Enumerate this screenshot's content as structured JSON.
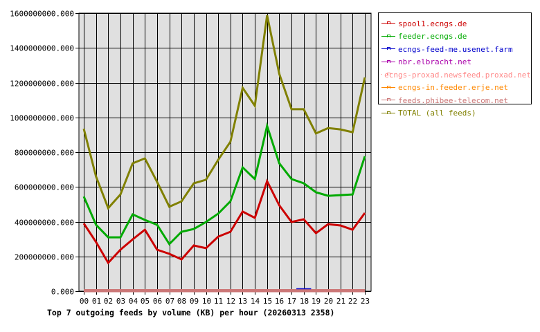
{
  "chart_data": {
    "type": "line",
    "title": "Top 7 outgoing feeds by volume (KB) per hour (20260313 2358)",
    "xlabel": "",
    "ylabel": "",
    "ylim": [
      0,
      1600000000
    ],
    "grid": true,
    "legend_position": "right",
    "y_ticks": [
      "0.000",
      "200000000.000",
      "400000000.000",
      "600000000.000",
      "800000000.000",
      "1000000000.000",
      "1200000000.000",
      "1400000000.000",
      "1600000000.000"
    ],
    "categories": [
      "00",
      "01",
      "02",
      "03",
      "04",
      "05",
      "06",
      "07",
      "08",
      "09",
      "10",
      "11",
      "12",
      "13",
      "14",
      "15",
      "16",
      "17",
      "18",
      "19",
      "20",
      "21",
      "22",
      "23"
    ],
    "series": [
      {
        "name": "spool1.ecngs.de",
        "color": "#cc0000",
        "values": [
          390000000,
          283000000,
          163000000,
          239000000,
          298000000,
          354000000,
          239000000,
          215000000,
          183000000,
          263000000,
          247000000,
          314000000,
          342000000,
          458000000,
          422000000,
          633000000,
          494000000,
          398000000,
          414000000,
          334000000,
          386000000,
          378000000,
          354000000,
          450000000
        ]
      },
      {
        "name": "feeder.ecngs.de",
        "color": "#00aa00",
        "values": [
          545000000,
          382000000,
          310000000,
          310000000,
          442000000,
          410000000,
          382000000,
          271000000,
          342000000,
          358000000,
          398000000,
          446000000,
          517000000,
          712000000,
          645000000,
          951000000,
          736000000,
          645000000,
          621000000,
          569000000,
          549000000,
          553000000,
          557000000,
          776000000
        ]
      },
      {
        "name": "ecngs-feed-me.usenet.farm",
        "color": "#0000cc",
        "values": [
          0,
          0,
          0,
          0,
          0,
          0,
          0,
          0,
          0,
          0,
          0,
          0,
          0,
          0,
          0,
          0,
          0,
          0,
          4000000,
          0,
          0,
          0,
          0,
          0
        ]
      },
      {
        "name": "nbr.elbracht.net",
        "color": "#aa00aa",
        "values": [
          0,
          0,
          0,
          0,
          0,
          0,
          0,
          0,
          0,
          0,
          0,
          0,
          0,
          0,
          0,
          0,
          0,
          0,
          0,
          0,
          0,
          0,
          0,
          0
        ]
      },
      {
        "name": "ecngs-proxad.newsfeed.proxad.net",
        "color": "#ff8888",
        "values": [
          0,
          0,
          0,
          0,
          0,
          0,
          0,
          0,
          0,
          0,
          0,
          0,
          0,
          0,
          0,
          0,
          0,
          0,
          0,
          0,
          0,
          0,
          0,
          0
        ]
      },
      {
        "name": "ecngs-in.feeder.erje.net",
        "color": "#ff8800",
        "values": [
          0,
          0,
          0,
          0,
          0,
          0,
          0,
          0,
          0,
          0,
          0,
          0,
          0,
          0,
          0,
          0,
          0,
          0,
          0,
          0,
          0,
          0,
          0,
          0
        ]
      },
      {
        "name": "feeds.phibee-telecom.net",
        "color": "#cc7777",
        "values": [
          0,
          0,
          0,
          0,
          0,
          0,
          0,
          0,
          0,
          0,
          0,
          0,
          0,
          0,
          0,
          0,
          0,
          0,
          0,
          0,
          0,
          0,
          0,
          0
        ]
      },
      {
        "name": "TOTAL (all feeds)",
        "color": "#808000",
        "values": [
          935000000,
          660000000,
          478000000,
          557000000,
          736000000,
          764000000,
          629000000,
          486000000,
          517000000,
          621000000,
          641000000,
          756000000,
          860000000,
          1170000000,
          1067000000,
          1588000000,
          1250000000,
          1047000000,
          1047000000,
          908000000,
          939000000,
          931000000,
          915000000,
          1230000000
        ]
      }
    ]
  },
  "colors": {
    "plot_background": "#e0e0e0",
    "grid": "#000000"
  }
}
